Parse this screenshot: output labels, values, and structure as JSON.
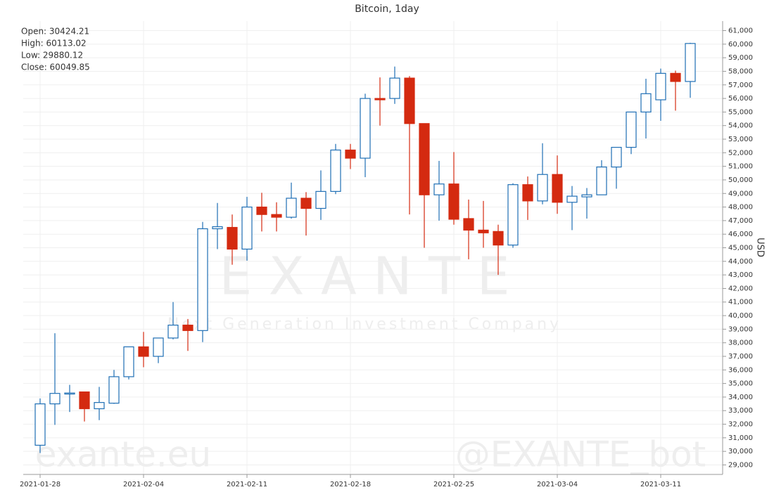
{
  "chart_data": {
    "type": "candlestick",
    "title": "Bitcoin, 1day",
    "y_label": "USD",
    "info": [
      "Open: 30424.21",
      "High: 60113.02",
      "Low: 29880.12",
      "Close: 60049.85"
    ],
    "watermarks": [
      "E X A N T E",
      "Next Generation Investment Company",
      "exante.eu",
      "@EXANTE_bot"
    ],
    "x": [
      "2021-01-28",
      "2021-01-29",
      "2021-01-30",
      "2021-01-31",
      "2021-02-01",
      "2021-02-02",
      "2021-02-03",
      "2021-02-04",
      "2021-02-05",
      "2021-02-06",
      "2021-02-07",
      "2021-02-08",
      "2021-02-09",
      "2021-02-10",
      "2021-02-11",
      "2021-02-12",
      "2021-02-13",
      "2021-02-14",
      "2021-02-15",
      "2021-02-16",
      "2021-02-17",
      "2021-02-18",
      "2021-02-19",
      "2021-02-20",
      "2021-02-21",
      "2021-02-22",
      "2021-02-23",
      "2021-02-24",
      "2021-02-25",
      "2021-02-26",
      "2021-02-27",
      "2021-02-28",
      "2021-03-01",
      "2021-03-02",
      "2021-03-03",
      "2021-03-04",
      "2021-03-05",
      "2021-03-06",
      "2021-03-07",
      "2021-03-08",
      "2021-03-09",
      "2021-03-10",
      "2021-03-11",
      "2021-03-12",
      "2021-03-13"
    ],
    "xticks": [
      "2021-01-28",
      "2021-02-04",
      "2021-02-11",
      "2021-02-18",
      "2021-02-25",
      "2021-03-04",
      "2021-03-11"
    ],
    "open": [
      30450,
      33500,
      34250,
      34380,
      33140,
      33550,
      35500,
      37700,
      37000,
      38350,
      39300,
      38900,
      46400,
      46500,
      44900,
      48000,
      47450,
      47250,
      48650,
      47900,
      49150,
      52200,
      51600,
      56000,
      56000,
      57500,
      54150,
      48900,
      49700,
      47150,
      46300,
      46200,
      45200,
      49650,
      48450,
      50400,
      48350,
      48750,
      48900,
      50950,
      52400,
      55000,
      55900,
      57850,
      57250
    ],
    "high": [
      33900,
      38700,
      34900,
      34380,
      34750,
      36000,
      37700,
      38800,
      38350,
      41000,
      39750,
      46900,
      48300,
      47450,
      48750,
      49050,
      48350,
      49800,
      49100,
      50700,
      52650,
      52650,
      56350,
      57550,
      58350,
      57650,
      54150,
      51400,
      52050,
      48550,
      48450,
      46700,
      49750,
      50250,
      52700,
      51800,
      49550,
      49400,
      51450,
      52400,
      55000,
      57450,
      58200,
      58050,
      60100
    ],
    "low": [
      29880,
      31950,
      32900,
      32200,
      32300,
      33500,
      35300,
      36200,
      36500,
      38250,
      37400,
      38050,
      44900,
      43750,
      44050,
      46200,
      46200,
      47150,
      45900,
      47050,
      48950,
      50800,
      50200,
      54000,
      55600,
      47450,
      45000,
      47000,
      46700,
      44150,
      45000,
      43000,
      45000,
      47050,
      48200,
      47500,
      46300,
      47150,
      48900,
      49350,
      51900,
      53050,
      54350,
      55100,
      56050
    ],
    "close": [
      33500,
      34270,
      34300,
      33140,
      33600,
      35500,
      37700,
      37000,
      38350,
      39300,
      38900,
      46400,
      46550,
      44900,
      48000,
      47450,
      47250,
      48650,
      47900,
      49150,
      52200,
      51600,
      56000,
      55900,
      57500,
      54150,
      48900,
      49700,
      47100,
      46300,
      46100,
      45200,
      49650,
      48450,
      50400,
      48350,
      48800,
      48900,
      50950,
      52400,
      55000,
      56350,
      57850,
      57250,
      60050
    ],
    "up_color": "#1f6fb5",
    "down_color": "#d42a10",
    "ylim": [
      28300,
      61700
    ],
    "yticks": [
      {
        "value": 29000,
        "label": "29,000"
      },
      {
        "value": 30000,
        "label": "30,000"
      },
      {
        "value": 31000,
        "label": "31,000"
      },
      {
        "value": 32000,
        "label": "32,000"
      },
      {
        "value": 33000,
        "label": "33,000"
      },
      {
        "value": 34000,
        "label": "34,000"
      },
      {
        "value": 35000,
        "label": "35,000"
      },
      {
        "value": 36000,
        "label": "36,000"
      },
      {
        "value": 37000,
        "label": "37,000"
      },
      {
        "value": 38000,
        "label": "38,000"
      },
      {
        "value": 39000,
        "label": "39,000"
      },
      {
        "value": 40000,
        "label": "40,000"
      },
      {
        "value": 41000,
        "label": "41,000"
      },
      {
        "value": 42000,
        "label": "42,000"
      },
      {
        "value": 43000,
        "label": "43,000"
      },
      {
        "value": 44000,
        "label": "44,000"
      },
      {
        "value": 45000,
        "label": "45,000"
      },
      {
        "value": 46000,
        "label": "46,000"
      },
      {
        "value": 47000,
        "label": "47,000"
      },
      {
        "value": 48000,
        "label": "48,000"
      },
      {
        "value": 49000,
        "label": "49,000"
      },
      {
        "value": 50000,
        "label": "50,000"
      },
      {
        "value": 51000,
        "label": "51,000"
      },
      {
        "value": 52000,
        "label": "52,000"
      },
      {
        "value": 53000,
        "label": "53,000"
      },
      {
        "value": 54000,
        "label": "54,000"
      },
      {
        "value": 55000,
        "label": "55,000"
      },
      {
        "value": 56000,
        "label": "56,000"
      },
      {
        "value": 57000,
        "label": "57,000"
      },
      {
        "value": 58000,
        "label": "58,000"
      },
      {
        "value": 59000,
        "label": "59,000"
      },
      {
        "value": 60000,
        "label": "60,000"
      },
      {
        "value": 61000,
        "label": "61,000"
      }
    ],
    "grid": true
  }
}
